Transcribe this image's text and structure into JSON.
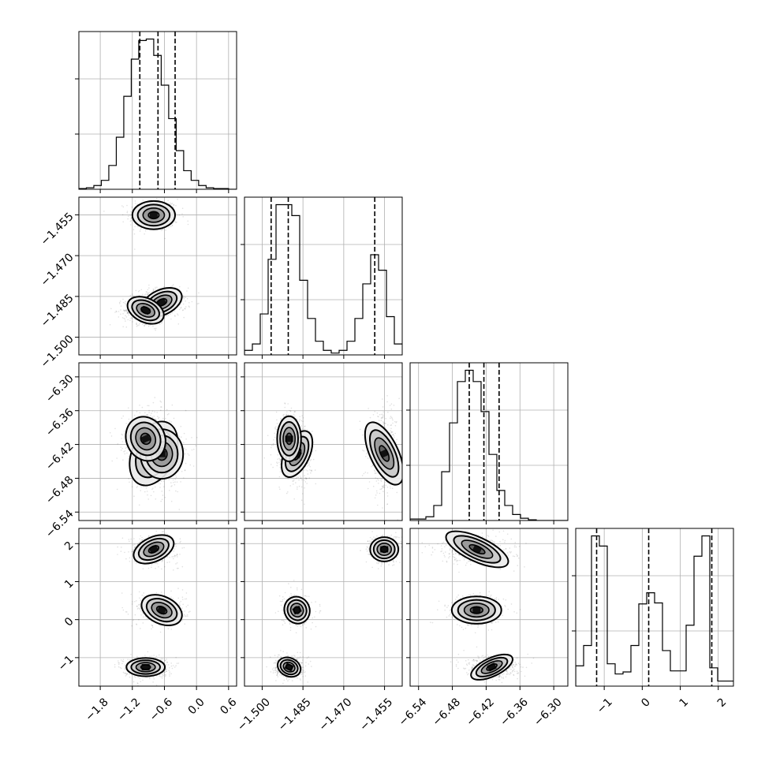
{
  "chart_data": {
    "type": "corner",
    "parameters": [
      {
        "range": [
          -2.2,
          0.75
        ],
        "ticks": [
          -1.8,
          -1.2,
          -0.6,
          0.0,
          0.6
        ],
        "tick_labels": [
          "−1.8",
          "−1.2",
          "−0.6",
          "0.0",
          "0.6"
        ],
        "quantiles": [
          -1.06,
          -0.72,
          -0.4
        ]
      },
      {
        "range": [
          -1.5065,
          -1.4485
        ],
        "ticks": [
          -1.5,
          -1.485,
          -1.47,
          -1.455
        ],
        "tick_labels": [
          "−1.500",
          "−1.485",
          "−1.470",
          "−1.455"
        ],
        "quantiles": [
          -1.4967,
          -1.4904,
          -1.4586
        ]
      },
      {
        "range": [
          -6.555,
          -6.275
        ],
        "ticks": [
          -6.54,
          -6.48,
          -6.42,
          -6.36,
          -6.3
        ],
        "tick_labels": [
          "−6.54",
          "−6.48",
          "−6.42",
          "−6.36",
          "−6.30"
        ],
        "quantiles": [
          -6.45,
          -6.424,
          -6.397
        ]
      },
      {
        "range": [
          -1.75,
          2.4
        ],
        "ticks": [
          -1,
          0,
          1,
          2
        ],
        "tick_labels": [
          "−1",
          "0",
          "1",
          "2"
        ],
        "quantiles": [
          -1.2,
          0.17,
          1.83
        ]
      }
    ],
    "histograms": [
      {
        "edges_start": -2.2,
        "bin_width": 0.14,
        "counts": [
          1,
          2,
          5,
          12,
          32,
          70,
          125,
          175,
          200,
          202,
          180,
          140,
          95,
          52,
          25,
          12,
          5,
          2,
          1,
          1,
          0
        ]
      },
      {
        "edges_start": -1.5065,
        "bin_width": 0.0029,
        "counts": [
          5,
          12,
          45,
          105,
          165,
          165,
          153,
          82,
          40,
          15,
          5,
          2,
          5,
          15,
          40,
          78,
          110,
          93,
          42,
          12
        ]
      },
      {
        "edges_start": -6.555,
        "bin_width": 0.014,
        "counts": [
          2,
          2,
          5,
          20,
          65,
          130,
          185,
          200,
          185,
          145,
          88,
          40,
          20,
          8,
          3,
          1,
          0,
          0,
          0,
          0
        ]
      },
      {
        "edges_start": -1.75,
        "bin_width": 0.2075,
        "counts": [
          20,
          40,
          148,
          138,
          22,
          12,
          14,
          40,
          81,
          92,
          82,
          35,
          15,
          15,
          60,
          128,
          148,
          18,
          5,
          5
        ]
      }
    ],
    "clusters": [
      {
        "mean": [
          -0.8,
          -1.4551,
          -6.436,
          1.85
        ],
        "sd": [
          0.2,
          0.0026,
          0.03,
          0.16
        ],
        "weight": 0.3
      },
      {
        "mean": [
          -0.65,
          -1.4872,
          -6.437,
          0.25
        ],
        "sd": [
          0.2,
          0.0023,
          0.022,
          0.18
        ],
        "weight": 0.3
      },
      {
        "mean": [
          -0.95,
          -1.4901,
          -6.41,
          -1.25
        ],
        "sd": [
          0.18,
          0.0022,
          0.02,
          0.12
        ],
        "weight": 0.4
      }
    ]
  }
}
